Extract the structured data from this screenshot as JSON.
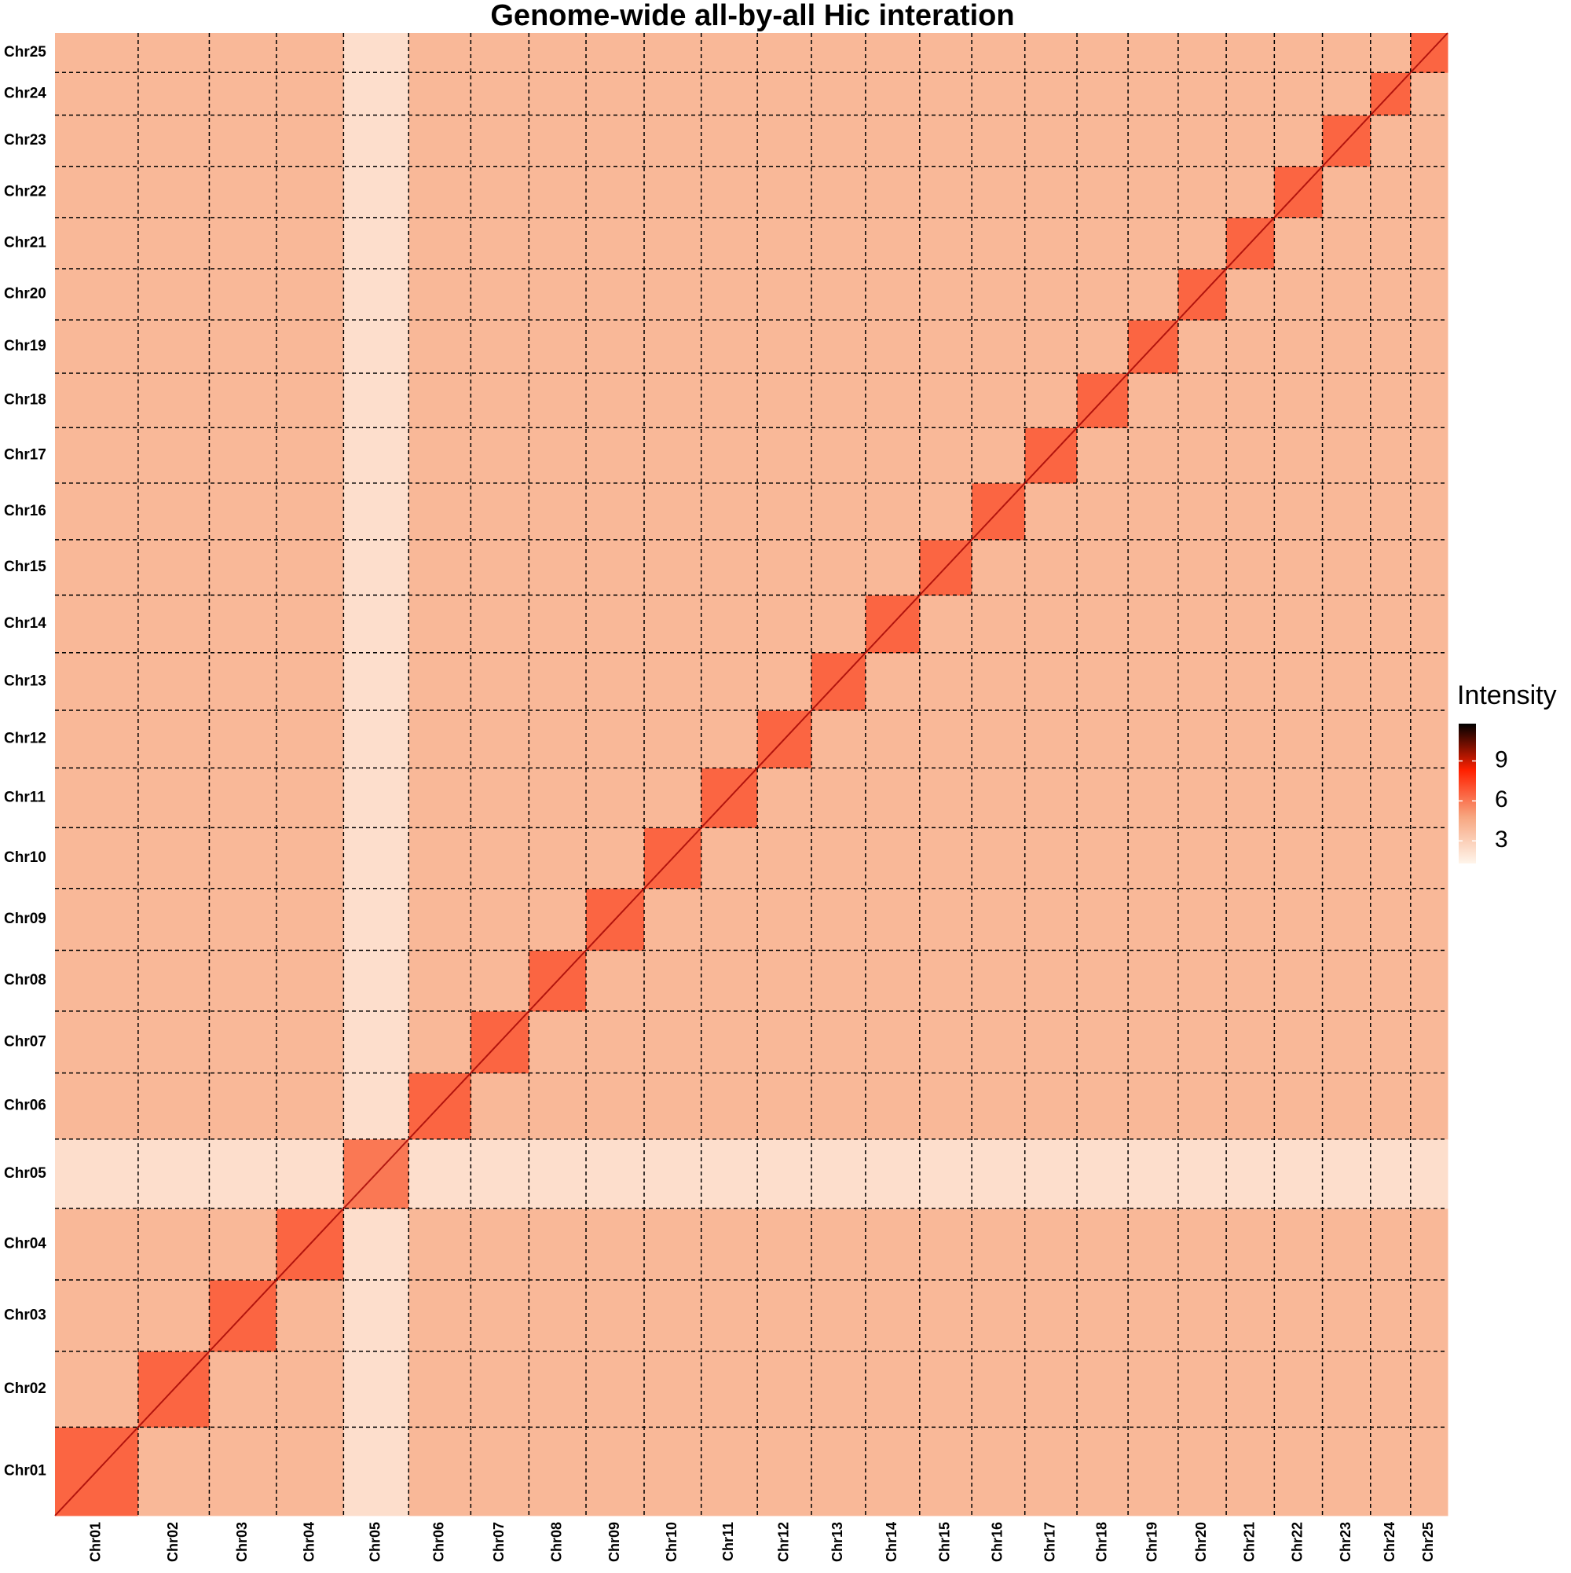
{
  "chart_data": {
    "type": "heatmap",
    "title": "Genome-wide all-by-all Hic interation",
    "x_categories": [
      "Chr01",
      "Chr02",
      "Chr03",
      "Chr04",
      "Chr05",
      "Chr06",
      "Chr07",
      "Chr08",
      "Chr09",
      "Chr10",
      "Chr11",
      "Chr12",
      "Chr13",
      "Chr14",
      "Chr15",
      "Chr16",
      "Chr17",
      "Chr18",
      "Chr19",
      "Chr20",
      "Chr21",
      "Chr22",
      "Chr23",
      "Chr24",
      "Chr25"
    ],
    "y_categories": [
      "Chr01",
      "Chr02",
      "Chr03",
      "Chr04",
      "Chr05",
      "Chr06",
      "Chr07",
      "Chr08",
      "Chr09",
      "Chr10",
      "Chr11",
      "Chr12",
      "Chr13",
      "Chr14",
      "Chr15",
      "Chr16",
      "Chr17",
      "Chr18",
      "Chr19",
      "Chr20",
      "Chr21",
      "Chr22",
      "Chr23",
      "Chr24",
      "Chr25"
    ],
    "values": [
      [
        6.5,
        4,
        4,
        4,
        2.3,
        4,
        4,
        4,
        4,
        4,
        4,
        4,
        4,
        4,
        4,
        4,
        4,
        4,
        4,
        4,
        4,
        4,
        4,
        4,
        4
      ],
      [
        4,
        6.5,
        4,
        4,
        2.3,
        4,
        4,
        4,
        4,
        4,
        4,
        4,
        4,
        4,
        4,
        4,
        4,
        4,
        4,
        4,
        4,
        4,
        4,
        4,
        4
      ],
      [
        4,
        4,
        6.5,
        4,
        2.3,
        4,
        4,
        4,
        4,
        4,
        4,
        4,
        4,
        4,
        4,
        4,
        4,
        4,
        4,
        4,
        4,
        4,
        4,
        4,
        4
      ],
      [
        4,
        4,
        4,
        6.5,
        2.3,
        4,
        4,
        4,
        4,
        4,
        4,
        4,
        4,
        4,
        4,
        4,
        4,
        4,
        4,
        4,
        4,
        4,
        4,
        4,
        4
      ],
      [
        2.3,
        2.3,
        2.3,
        2.3,
        6,
        2.3,
        2.3,
        2.3,
        2.3,
        2.3,
        2.3,
        2.3,
        2.3,
        2.3,
        2.3,
        2.3,
        2.3,
        2.3,
        2.3,
        2.3,
        2.3,
        2.3,
        2.3,
        2.3,
        2.3
      ],
      [
        4,
        4,
        4,
        4,
        2.3,
        6.5,
        4,
        4,
        4,
        4,
        4,
        4,
        4,
        4,
        4,
        4,
        4,
        4,
        4,
        4,
        4,
        4,
        4,
        4,
        4
      ],
      [
        4,
        4,
        4,
        4,
        2.3,
        4,
        6.5,
        4,
        4,
        4,
        4,
        4,
        4,
        4,
        4,
        4,
        4,
        4,
        4,
        4,
        4,
        4,
        4,
        4,
        4
      ],
      [
        4,
        4,
        4,
        4,
        2.3,
        4,
        4,
        6.5,
        4,
        4,
        4,
        4,
        4,
        4,
        4,
        4,
        4,
        4,
        4,
        4,
        4,
        4,
        4,
        4,
        4
      ],
      [
        4,
        4,
        4,
        4,
        2.3,
        4,
        4,
        4,
        6.5,
        4,
        4,
        4,
        4,
        4,
        4,
        4,
        4,
        4,
        4,
        4,
        4,
        4,
        4,
        4,
        4
      ],
      [
        4,
        4,
        4,
        4,
        2.3,
        4,
        4,
        4,
        4,
        6.5,
        4,
        4,
        4,
        4,
        4,
        4,
        4,
        4,
        4,
        4,
        4,
        4,
        4,
        4,
        4
      ],
      [
        4,
        4,
        4,
        4,
        2.3,
        4,
        4,
        4,
        4,
        4,
        6.5,
        4,
        4,
        4,
        4,
        4,
        4,
        4,
        4,
        4,
        4,
        4,
        4,
        4,
        4
      ],
      [
        4,
        4,
        4,
        4,
        2.3,
        4,
        4,
        4,
        4,
        4,
        4,
        6.5,
        4,
        4,
        4,
        4,
        4,
        4,
        4,
        4,
        4,
        4,
        4,
        4,
        4
      ],
      [
        4,
        4,
        4,
        4,
        2.3,
        4,
        4,
        4,
        4,
        4,
        4,
        4,
        6.5,
        4,
        4,
        4,
        4,
        4,
        4,
        4,
        4,
        4,
        4,
        4,
        4
      ],
      [
        4,
        4,
        4,
        4,
        2.3,
        4,
        4,
        4,
        4,
        4,
        4,
        4,
        4,
        6.5,
        4,
        4,
        4,
        4,
        4,
        4,
        4,
        4,
        4,
        4,
        4
      ],
      [
        4,
        4,
        4,
        4,
        2.3,
        4,
        4,
        4,
        4,
        4,
        4,
        4,
        4,
        4,
        6.5,
        4,
        4,
        4,
        4,
        4,
        4,
        4,
        4,
        4,
        4
      ],
      [
        4,
        4,
        4,
        4,
        2.3,
        4,
        4,
        4,
        4,
        4,
        4,
        4,
        4,
        4,
        4,
        6.5,
        4,
        4,
        4,
        4,
        4,
        4,
        4,
        4,
        4
      ],
      [
        4,
        4,
        4,
        4,
        2.3,
        4,
        4,
        4,
        4,
        4,
        4,
        4,
        4,
        4,
        4,
        4,
        6.5,
        4,
        4,
        4,
        4,
        4,
        4,
        4,
        4
      ],
      [
        4,
        4,
        4,
        4,
        2.3,
        4,
        4,
        4,
        4,
        4,
        4,
        4,
        4,
        4,
        4,
        4,
        4,
        6.5,
        4,
        4,
        4,
        4,
        4,
        4,
        4
      ],
      [
        4,
        4,
        4,
        4,
        2.3,
        4,
        4,
        4,
        4,
        4,
        4,
        4,
        4,
        4,
        4,
        4,
        4,
        4,
        6.5,
        4,
        4,
        4,
        4,
        4,
        4
      ],
      [
        4,
        4,
        4,
        4,
        2.3,
        4,
        4,
        4,
        4,
        4,
        4,
        4,
        4,
        4,
        4,
        4,
        4,
        4,
        4,
        6.5,
        4,
        4,
        4,
        4,
        4
      ],
      [
        4,
        4,
        4,
        4,
        2.3,
        4,
        4,
        4,
        4,
        4,
        4,
        4,
        4,
        4,
        4,
        4,
        4,
        4,
        4,
        4,
        6.5,
        4,
        4,
        4,
        4
      ],
      [
        4,
        4,
        4,
        4,
        2.3,
        4,
        4,
        4,
        4,
        4,
        4,
        4,
        4,
        4,
        4,
        4,
        4,
        4,
        4,
        4,
        4,
        6.5,
        4,
        4,
        4
      ],
      [
        4,
        4,
        4,
        4,
        2.3,
        4,
        4,
        4,
        4,
        4,
        4,
        4,
        4,
        4,
        4,
        4,
        4,
        4,
        4,
        4,
        4,
        4,
        6.5,
        4,
        4
      ],
      [
        4,
        4,
        4,
        4,
        2.3,
        4,
        4,
        4,
        4,
        4,
        4,
        4,
        4,
        4,
        4,
        4,
        4,
        4,
        4,
        4,
        4,
        4,
        4,
        6.5,
        4
      ],
      [
        4,
        4,
        4,
        4,
        2.3,
        4,
        4,
        4,
        4,
        4,
        4,
        4,
        4,
        4,
        4,
        4,
        4,
        4,
        4,
        4,
        4,
        4,
        4,
        4,
        6.5
      ]
    ],
    "legend_title": "Intensity",
    "colorbar_lim": [
      1.3,
      11.8
    ],
    "colorbar_ticks": [
      3,
      6,
      9
    ],
    "colorscale": [
      "#fff5eb",
      "#f7a680",
      "#ff2000",
      "#000000"
    ]
  }
}
